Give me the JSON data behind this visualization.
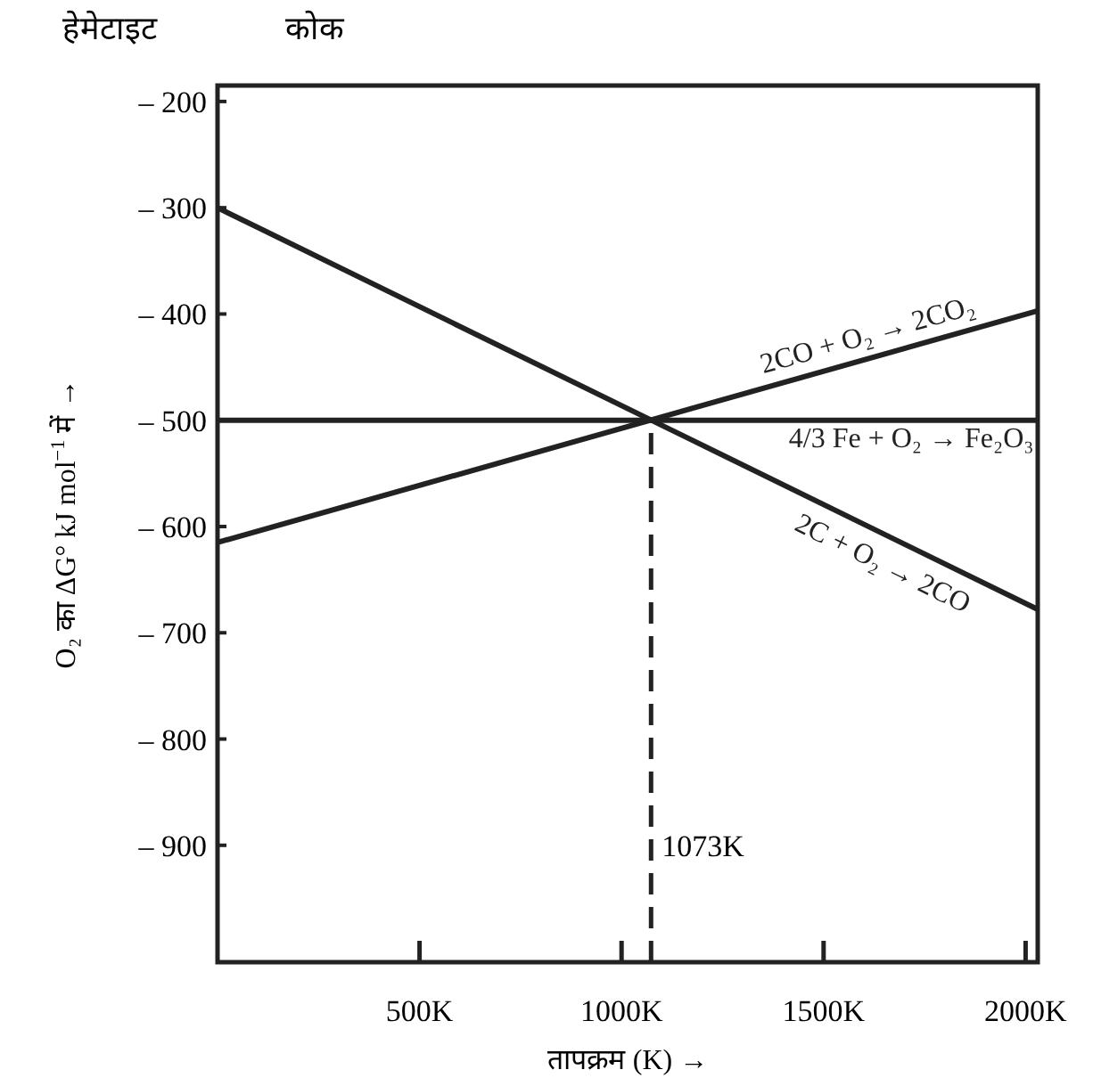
{
  "chart_data": {
    "type": "line",
    "xlabel": "तापक्रम (K) →",
    "ylabel": "O₂ का ΔG° kJ mol$^{−1}$ में →",
    "xlim": [
      0,
      2030
    ],
    "ylim": [
      -1010,
      -185
    ],
    "xticks": [
      {
        "value": 500,
        "label": "500K"
      },
      {
        "value": 1000,
        "label": "1000K"
      },
      {
        "value": 1500,
        "label": "1500K"
      },
      {
        "value": 2000,
        "label": "2000K"
      }
    ],
    "yticks": [
      {
        "value": -200,
        "label": "– 200"
      },
      {
        "value": -300,
        "label": "– 300"
      },
      {
        "value": -400,
        "label": "– 400"
      },
      {
        "value": -500,
        "label": "– 500"
      },
      {
        "value": -600,
        "label": "– 600"
      },
      {
        "value": -700,
        "label": "– 700"
      },
      {
        "value": -800,
        "label": "– 800"
      },
      {
        "value": -900,
        "label": "– 900"
      }
    ],
    "grid": false,
    "marker": "none",
    "series": [
      {
        "name": "2CO + O₂ → 2CO₂",
        "color": "#222222",
        "x": [
          0,
          2030
        ],
        "values": [
          -615,
          -397
        ]
      },
      {
        "name": "4/3 Fe + O₂ → Fe₂O₃",
        "color": "#222222",
        "x": [
          0,
          2030
        ],
        "values": [
          -500,
          -500
        ]
      },
      {
        "name": "2C + O₂ → 2CO",
        "color": "#222222",
        "x": [
          0,
          2030
        ],
        "values": [
          -300,
          -678
        ]
      },
      {
        "color": "#222222",
        "x": [
          1073,
          1073
        ],
        "values": [
          -1010,
          -500
        ],
        "line_style": "dashed"
      }
    ],
    "annotations": [
      "हेमेटाइट",
      "कोक",
      {
        "text": "1073K",
        "x": 1073,
        "y": -900
      }
    ]
  }
}
